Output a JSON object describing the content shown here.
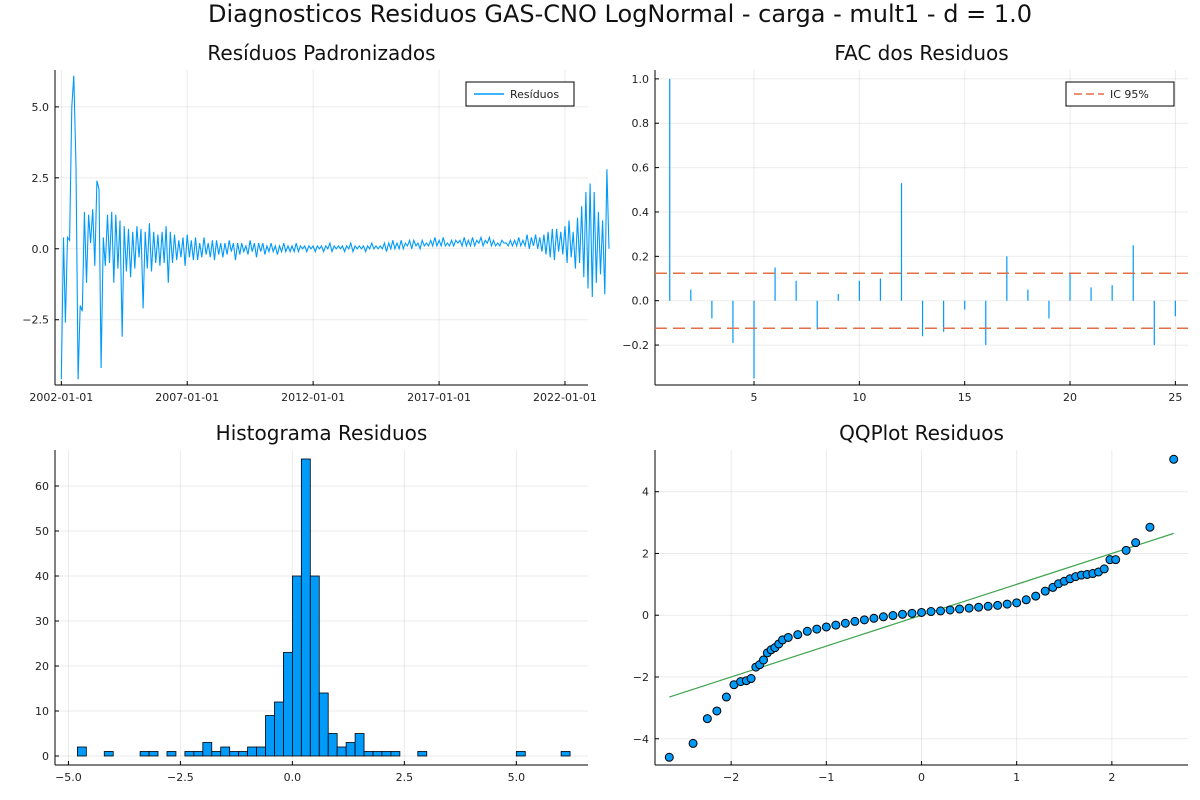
{
  "suptitle": "Diagnosticos Residuos  GAS-CNO LogNormal - carga - mult1 - d = 1.0",
  "chart_data": [
    {
      "type": "line",
      "title": "Resíduos Padronizados",
      "legend": "top-right",
      "grid": true,
      "x_is_date": true,
      "xlim": [
        "2001-10-01",
        "2022-12-01"
      ],
      "xticks": [
        "2002-01-01",
        "2007-01-01",
        "2012-01-01",
        "2017-01-01",
        "2022-01-01"
      ],
      "yticks": [
        -2.5,
        0.0,
        2.5,
        5.0
      ],
      "ylim": [
        -4.8,
        6.3
      ],
      "start": "2002-01-01",
      "frequency": "monthly",
      "series": [
        {
          "name": "Resíduos",
          "color": "#009af9",
          "values": [
            -4.6,
            0.4,
            -2.6,
            0.4,
            0.3,
            5.0,
            6.1,
            2.9,
            -4.6,
            -2.0,
            -2.2,
            1.3,
            -1.2,
            1.2,
            0.2,
            1.4,
            -0.6,
            2.4,
            2.1,
            -4.2,
            0.4,
            -0.6,
            1.2,
            -0.5,
            1.3,
            -1.2,
            1.2,
            -0.7,
            1.0,
            -3.1,
            0.8,
            -0.8,
            0.7,
            -1.0,
            0.6,
            -0.7,
            0.8,
            -0.3,
            0.7,
            -2.1,
            0.6,
            -0.7,
            0.9,
            -0.8,
            0.6,
            -0.5,
            0.5,
            -0.6,
            0.6,
            -0.5,
            0.8,
            -1.2,
            0.6,
            -0.5,
            0.5,
            -0.4,
            0.3,
            -0.3,
            0.4,
            -0.6,
            0.5,
            -0.3,
            0.3,
            -0.4,
            0.4,
            -0.4,
            0.2,
            -0.3,
            0.4,
            -0.2,
            0.2,
            -0.3,
            0.3,
            -0.4,
            0.3,
            -0.2,
            0.2,
            -0.3,
            0.2,
            -0.2,
            0.3,
            -0.1,
            0.2,
            -0.4,
            0.2,
            -0.2,
            0.2,
            -0.1,
            0.1,
            -0.2,
            0.3,
            -0.1,
            0.2,
            -0.3,
            0.2,
            -0.1,
            0.2,
            -0.2,
            0.1,
            -0.1,
            0.2,
            -0.1,
            0.1,
            -0.2,
            0.1,
            -0.1,
            0.2,
            -0.1,
            0.1,
            -0.1,
            0.1,
            -0.1,
            0.2,
            -0.1,
            0.1,
            0.0,
            0.1,
            -0.1,
            0.1,
            0.0,
            0.1,
            -0.1,
            0.1,
            0.0,
            0.1,
            -0.1,
            0.1,
            0.0,
            0.2,
            -0.1,
            0.1,
            0.0,
            0.1,
            0.0,
            0.1,
            -0.1,
            0.1,
            0.0,
            0.2,
            -0.1,
            0.1,
            0.0,
            0.1,
            0.0,
            0.1,
            -0.1,
            0.1,
            0.0,
            0.2,
            0.0,
            0.1,
            0.0,
            0.1,
            0.0,
            0.2,
            -0.1,
            0.2,
            0.0,
            0.3,
            0.0,
            0.2,
            0.0,
            0.3,
            0.0,
            0.2,
            0.1,
            0.3,
            0.0,
            0.3,
            0.1,
            0.2,
            0.0,
            0.3,
            0.1,
            0.2,
            0.1,
            0.3,
            0.1,
            0.4,
            0.1,
            0.3,
            0.1,
            0.4,
            0.1,
            0.2,
            0.1,
            0.3,
            0.1,
            0.3,
            0.2,
            0.3,
            0.1,
            0.4,
            0.1,
            0.3,
            0.1,
            0.4,
            0.1,
            0.3,
            0.2,
            0.4,
            0.1,
            0.3,
            0.2,
            0.4,
            0.1,
            0.3,
            0.1,
            0.2,
            0.1,
            0.3,
            0.2,
            0.2,
            0.1,
            0.3,
            0.1,
            0.3,
            0.1,
            0.4,
            0.1,
            0.3,
            0.1,
            0.5,
            0.0,
            0.4,
            0.1,
            0.5,
            0.0,
            0.4,
            -0.1,
            0.5,
            -0.2,
            0.6,
            -0.3,
            0.7,
            -0.4,
            0.7,
            -0.1,
            0.6,
            -0.2,
            0.8,
            -0.5,
            1.0,
            -0.3,
            0.6,
            -0.7,
            1.1,
            -0.5,
            1.5,
            -1.0,
            2.0,
            -1.4,
            2.3,
            -1.7,
            2.0,
            -1.2,
            1.3,
            -0.9,
            1.0,
            -1.6,
            2.8,
            0.0
          ]
        }
      ]
    },
    {
      "type": "bar",
      "title": "FAC dos Residuos",
      "legend": "top-right",
      "grid": true,
      "xlim": [
        0.3,
        25.6
      ],
      "ylim": [
        -0.38,
        1.04
      ],
      "xticks": [
        5,
        10,
        15,
        20,
        25
      ],
      "yticks": [
        -0.2,
        0.0,
        0.2,
        0.4,
        0.6,
        0.8,
        1.0
      ],
      "x": [
        1,
        2,
        3,
        4,
        5,
        6,
        7,
        8,
        9,
        10,
        11,
        12,
        13,
        14,
        15,
        16,
        17,
        18,
        19,
        20,
        21,
        22,
        23,
        24,
        25
      ],
      "values": [
        1.0,
        0.05,
        -0.08,
        -0.19,
        -0.35,
        0.15,
        0.09,
        -0.13,
        0.03,
        0.09,
        0.1,
        0.53,
        -0.16,
        -0.14,
        -0.04,
        -0.2,
        0.2,
        0.05,
        -0.08,
        0.12,
        0.06,
        0.07,
        0.25,
        -0.2,
        -0.07
      ],
      "series_color": "#009af9",
      "confidence_band": {
        "name": "IC 95%",
        "value": 0.124,
        "color": "#e26f46"
      }
    },
    {
      "type": "bar",
      "title": "Histograma Residuos",
      "grid": true,
      "xlim": [
        -5.3,
        6.6
      ],
      "ylim": [
        -2,
        68
      ],
      "xticks": [
        -5.0,
        -2.5,
        0.0,
        2.5,
        5.0
      ],
      "yticks": [
        0,
        10,
        20,
        30,
        40,
        50,
        60
      ],
      "bin_width": 0.2,
      "bins_left": [
        -4.8,
        -4.2,
        -3.4,
        -3.2,
        -2.8,
        -2.4,
        -2.2,
        -2.0,
        -1.8,
        -1.6,
        -1.4,
        -1.2,
        -1.0,
        -0.8,
        -0.6,
        -0.4,
        -0.2,
        0.0,
        0.2,
        0.4,
        0.6,
        0.8,
        1.0,
        1.2,
        1.4,
        1.6,
        1.8,
        2.0,
        2.2,
        2.8,
        5.0,
        6.0
      ],
      "counts": [
        2,
        1,
        1,
        1,
        1,
        1,
        1,
        3,
        1,
        2,
        1,
        1,
        2,
        2,
        9,
        12,
        23,
        40,
        66,
        40,
        14,
        5,
        2,
        3,
        5,
        1,
        1,
        1,
        1,
        1,
        1,
        1
      ],
      "bar_color": "#009af9"
    },
    {
      "type": "scatter",
      "title": "QQPlot Residuos",
      "grid": true,
      "xlim": [
        -2.8,
        2.8
      ],
      "ylim": [
        -4.85,
        5.35
      ],
      "xticks": [
        -2,
        -1,
        0,
        1,
        2
      ],
      "yticks": [
        -4,
        -2,
        0,
        2,
        4
      ],
      "point_color": "#009af9",
      "reference_line": {
        "x": [
          -2.65,
          2.65
        ],
        "y": [
          -2.65,
          2.65
        ],
        "color": "#3da44d"
      },
      "x": [
        -2.65,
        -2.4,
        -2.25,
        -2.15,
        -2.05,
        -1.97,
        -1.9,
        -1.84,
        -1.79,
        -1.74,
        -1.7,
        -1.66,
        -1.62,
        -1.58,
        -1.54,
        -1.5,
        -1.46,
        -1.4,
        -1.3,
        -1.2,
        -1.1,
        -1.0,
        -0.9,
        -0.8,
        -0.7,
        -0.6,
        -0.5,
        -0.4,
        -0.3,
        -0.2,
        -0.1,
        0.0,
        0.1,
        0.2,
        0.3,
        0.4,
        0.5,
        0.6,
        0.7,
        0.8,
        0.9,
        1.0,
        1.1,
        1.2,
        1.3,
        1.38,
        1.44,
        1.5,
        1.56,
        1.62,
        1.68,
        1.74,
        1.8,
        1.86,
        1.92,
        1.98,
        2.04,
        2.15,
        2.25,
        2.4,
        2.65
      ],
      "y": [
        -4.6,
        -4.15,
        -3.35,
        -3.1,
        -2.65,
        -2.25,
        -2.15,
        -2.12,
        -2.05,
        -1.68,
        -1.6,
        -1.45,
        -1.22,
        -1.12,
        -1.05,
        -0.93,
        -0.8,
        -0.72,
        -0.63,
        -0.52,
        -0.45,
        -0.38,
        -0.32,
        -0.26,
        -0.2,
        -0.15,
        -0.1,
        -0.05,
        -0.01,
        0.03,
        0.06,
        0.09,
        0.12,
        0.14,
        0.17,
        0.2,
        0.23,
        0.26,
        0.29,
        0.32,
        0.36,
        0.4,
        0.5,
        0.62,
        0.78,
        0.9,
        1.02,
        1.1,
        1.18,
        1.25,
        1.3,
        1.32,
        1.35,
        1.4,
        1.5,
        1.8,
        1.8,
        2.1,
        2.35,
        2.85,
        5.05
      ]
    }
  ]
}
